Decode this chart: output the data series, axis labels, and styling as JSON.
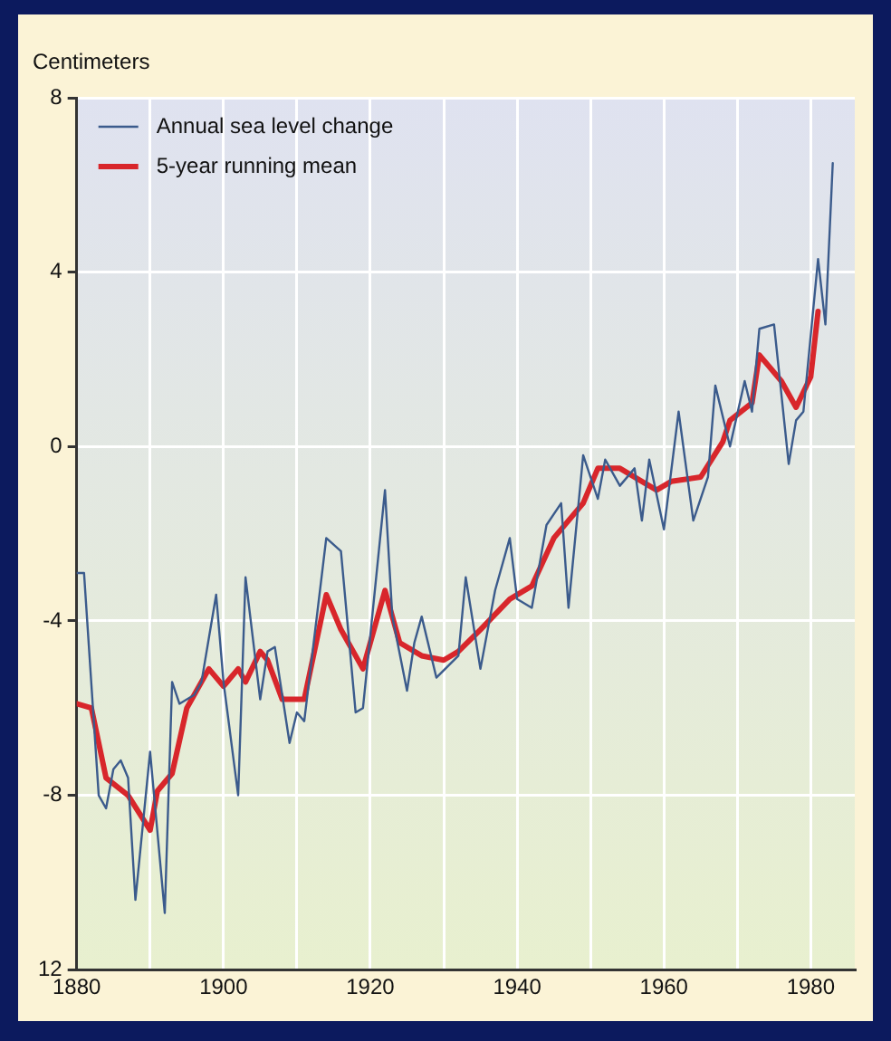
{
  "chart_data": {
    "type": "line",
    "ylabel": "Centimeters",
    "xlim": [
      1880,
      1986
    ],
    "xticks": [
      1880,
      {
        "value": 1890,
        "label": null
      },
      1900,
      {
        "value": 1910,
        "label": null
      },
      1920,
      {
        "value": 1930,
        "label": null
      },
      1940,
      {
        "value": 1950,
        "label": null
      },
      1960,
      {
        "value": 1970,
        "label": null
      },
      1980
    ],
    "ylim": [
      -12,
      8
    ],
    "yticks": [
      {
        "value": -12,
        "label": "12"
      },
      -8,
      -4,
      0,
      4,
      8
    ],
    "grid": true,
    "legend": "top left",
    "marker": "none",
    "line_style": "solid",
    "series": [
      {
        "name": "Annual sea level change",
        "color": "#3b5b8c",
        "x": [
          1880,
          1881,
          1883,
          1884,
          1885,
          1886,
          1887,
          1888,
          1890,
          1892,
          1893,
          1894,
          1896,
          1897,
          1899,
          1900,
          1902,
          1903,
          1905,
          1906,
          1907,
          1909,
          1910,
          1911,
          1914,
          1916,
          1918,
          1919,
          1922,
          1923,
          1925,
          1926,
          1927,
          1929,
          1932,
          1933,
          1935,
          1937,
          1939,
          1940,
          1942,
          1944,
          1946,
          1947,
          1949,
          1951,
          1952,
          1954,
          1956,
          1957,
          1958,
          1960,
          1962,
          1964,
          1966,
          1967,
          1969,
          1971,
          1972,
          1973,
          1975,
          1977,
          1978,
          1979,
          1981,
          1982,
          1983
        ],
        "values": [
          -2.9,
          -2.9,
          -8.0,
          -8.3,
          -7.4,
          -7.2,
          -7.6,
          -10.4,
          -7.0,
          -10.7,
          -5.4,
          -5.9,
          -5.7,
          -5.4,
          -3.4,
          -5.4,
          -8.0,
          -3.0,
          -5.8,
          -4.7,
          -4.6,
          -6.8,
          -6.1,
          -6.3,
          -2.1,
          -2.4,
          -6.1,
          -6.0,
          -1.0,
          -3.9,
          -5.6,
          -4.5,
          -3.9,
          -5.3,
          -4.8,
          -3.0,
          -5.1,
          -3.3,
          -2.1,
          -3.5,
          -3.7,
          -1.8,
          -1.3,
          -3.7,
          -0.2,
          -1.2,
          -0.3,
          -0.9,
          -0.5,
          -1.7,
          -0.3,
          -1.9,
          0.8,
          -1.7,
          -0.7,
          1.4,
          0.0,
          1.5,
          0.8,
          2.7,
          2.8,
          -0.4,
          0.6,
          0.8,
          4.3,
          2.8,
          6.5
        ]
      },
      {
        "name": "5-year running mean",
        "color": "#d8262b",
        "x": [
          1880,
          1882,
          1884,
          1887,
          1890,
          1891,
          1893,
          1895,
          1898,
          1900,
          1902,
          1903,
          1905,
          1906,
          1908,
          1911,
          1914,
          1916,
          1919,
          1922,
          1924,
          1927,
          1930,
          1932,
          1935,
          1939,
          1942,
          1945,
          1949,
          1951,
          1954,
          1957,
          1959,
          1961,
          1965,
          1968,
          1969,
          1972,
          1973,
          1976,
          1978,
          1980,
          1981
        ],
        "values": [
          -5.9,
          -6.0,
          -7.6,
          -8.0,
          -8.8,
          -7.9,
          -7.5,
          -6.0,
          -5.1,
          -5.5,
          -5.1,
          -5.4,
          -4.7,
          -4.9,
          -5.8,
          -5.8,
          -3.4,
          -4.2,
          -5.1,
          -3.3,
          -4.5,
          -4.8,
          -4.9,
          -4.7,
          -4.2,
          -3.5,
          -3.2,
          -2.1,
          -1.3,
          -0.5,
          -0.5,
          -0.8,
          -1.0,
          -0.8,
          -0.7,
          0.1,
          0.6,
          1.0,
          2.1,
          1.5,
          0.9,
          1.6,
          3.1
        ]
      }
    ]
  }
}
